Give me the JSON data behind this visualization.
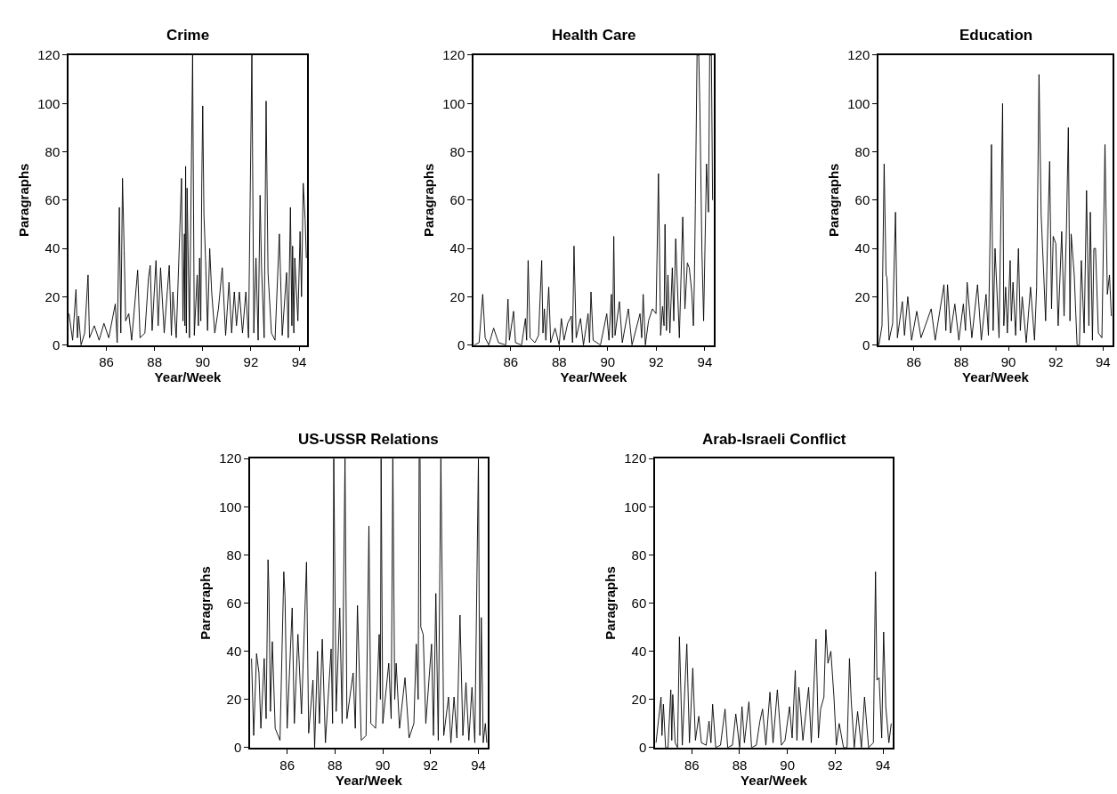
{
  "chart_data": [
    {
      "type": "line",
      "title": "Crime",
      "xlabel": "Year/Week",
      "ylabel": "Paragraphs",
      "color": "#000000",
      "xlim": [
        84.43,
        94.33
      ],
      "ylim": [
        0,
        120
      ],
      "xticks": [
        86,
        88,
        90,
        92,
        94
      ],
      "yticks": [
        0,
        20,
        40,
        60,
        80,
        100,
        120
      ],
      "x": [
        84.45,
        84.6,
        84.74,
        84.8,
        84.85,
        84.95,
        85.1,
        85.24,
        85.3,
        85.5,
        85.7,
        85.9,
        86.1,
        86.37,
        86.45,
        86.54,
        86.6,
        86.67,
        86.74,
        86.8,
        86.93,
        87.05,
        87.3,
        87.4,
        87.6,
        87.75,
        87.82,
        87.9,
        88.06,
        88.15,
        88.25,
        88.4,
        88.61,
        88.7,
        88.76,
        88.9,
        89.12,
        89.18,
        89.24,
        89.26,
        89.29,
        89.32,
        89.35,
        89.45,
        89.58,
        89.65,
        89.77,
        89.82,
        89.87,
        89.92,
        89.96,
        90.0,
        90.05,
        90.12,
        90.2,
        90.29,
        90.37,
        90.5,
        90.65,
        90.81,
        90.95,
        91.09,
        91.2,
        91.31,
        91.4,
        91.52,
        91.65,
        91.79,
        91.9,
        92.04,
        92.12,
        92.21,
        92.3,
        92.38,
        92.44,
        92.55,
        92.63,
        92.71,
        92.85,
        93.0,
        93.18,
        93.3,
        93.48,
        93.55,
        93.64,
        93.7,
        93.73,
        93.78,
        93.82,
        93.95,
        94.04,
        94.1,
        94.17,
        94.25,
        94.3
      ],
      "values": [
        13,
        2,
        23,
        3,
        12,
        0,
        5,
        29,
        3,
        8,
        2,
        9,
        3,
        17,
        1,
        57,
        5,
        69,
        39,
        10,
        13,
        2,
        31,
        3,
        5,
        28,
        33,
        6,
        35,
        8,
        32,
        5,
        33,
        4,
        22,
        3,
        69,
        10,
        46,
        8,
        74,
        5,
        65,
        3,
        120,
        4,
        29,
        8,
        36,
        10,
        67,
        99,
        54,
        35,
        6,
        40,
        22,
        5,
        15,
        32,
        4,
        26,
        5,
        22,
        8,
        22,
        5,
        22,
        3,
        120,
        5,
        36,
        2,
        62,
        32,
        3,
        101,
        30,
        5,
        2,
        46,
        4,
        30,
        3,
        57,
        8,
        41,
        5,
        36,
        10,
        47,
        20,
        67,
        52,
        36
      ]
    },
    {
      "type": "line",
      "title": "Health Care",
      "xlabel": "Year/Week",
      "ylabel": "Paragraphs",
      "color": "#000000",
      "xlim": [
        84.47,
        94.37
      ],
      "ylim": [
        0,
        120
      ],
      "xticks": [
        86,
        88,
        90,
        92,
        94
      ],
      "yticks": [
        0,
        20,
        40,
        60,
        80,
        100,
        120
      ],
      "x": [
        84.5,
        84.7,
        84.85,
        84.95,
        85.1,
        85.3,
        85.5,
        85.8,
        85.89,
        85.95,
        86.12,
        86.2,
        86.45,
        86.61,
        86.66,
        86.72,
        86.8,
        87.0,
        87.15,
        87.28,
        87.33,
        87.39,
        87.45,
        87.57,
        87.65,
        87.83,
        88.0,
        88.09,
        88.2,
        88.35,
        88.5,
        88.55,
        88.61,
        88.7,
        88.88,
        89.0,
        89.19,
        89.25,
        89.31,
        89.4,
        89.7,
        89.96,
        90.05,
        90.15,
        90.2,
        90.25,
        90.3,
        90.48,
        90.6,
        90.85,
        91.0,
        91.33,
        91.4,
        91.46,
        91.55,
        91.68,
        91.84,
        91.99,
        92.09,
        92.18,
        92.26,
        92.32,
        92.36,
        92.42,
        92.48,
        92.56,
        92.66,
        92.72,
        92.8,
        92.95,
        93.09,
        93.18,
        93.28,
        93.36,
        93.46,
        93.53,
        93.57,
        93.61,
        93.68,
        93.75,
        93.8,
        93.88,
        93.95,
        94.07,
        94.15,
        94.2,
        94.27,
        94.32
      ],
      "values": [
        0,
        1,
        21,
        3,
        0,
        7,
        1,
        0,
        19,
        2,
        14,
        1,
        0,
        11,
        2,
        35,
        3,
        1,
        4,
        35,
        5,
        15,
        2,
        24,
        1,
        7,
        0,
        11,
        2,
        9,
        12,
        1,
        41,
        3,
        11,
        0,
        13,
        1,
        22,
        2,
        0,
        13,
        2,
        21,
        3,
        45,
        4,
        18,
        1,
        15,
        0,
        13,
        3,
        21,
        0,
        10,
        15,
        13,
        71,
        4,
        16,
        8,
        50,
        6,
        29,
        5,
        32,
        10,
        44,
        3,
        53,
        15,
        34,
        32,
        22,
        8,
        27,
        58,
        120,
        120,
        96,
        39,
        10,
        75,
        55,
        120,
        120,
        60
      ]
    },
    {
      "type": "line",
      "title": "Education",
      "xlabel": "Year/Week",
      "ylabel": "Paragraphs",
      "color": "#000000",
      "xlim": [
        84.5,
        94.4
      ],
      "ylim": [
        0,
        120
      ],
      "xticks": [
        86,
        88,
        90,
        92,
        94
      ],
      "yticks": [
        0,
        20,
        40,
        60,
        80,
        100,
        120
      ],
      "x": [
        84.52,
        84.65,
        84.74,
        84.82,
        84.86,
        84.95,
        85.1,
        85.22,
        85.3,
        85.51,
        85.6,
        85.74,
        85.9,
        86.12,
        86.3,
        86.73,
        86.9,
        87.27,
        87.35,
        87.42,
        87.55,
        87.73,
        87.9,
        88.09,
        88.18,
        88.25,
        88.45,
        88.69,
        88.85,
        89.05,
        89.15,
        89.2,
        89.28,
        89.35,
        89.43,
        89.6,
        89.75,
        89.8,
        89.88,
        89.95,
        90.07,
        90.12,
        90.19,
        90.3,
        90.42,
        90.5,
        90.58,
        90.75,
        90.93,
        91.1,
        91.19,
        91.29,
        91.38,
        91.49,
        91.57,
        91.65,
        91.74,
        91.82,
        91.89,
        92.0,
        92.1,
        92.25,
        92.35,
        92.45,
        92.53,
        92.6,
        92.65,
        92.78,
        92.9,
        93.0,
        93.08,
        93.2,
        93.3,
        93.4,
        93.46,
        93.55,
        93.61,
        93.68,
        93.8,
        93.95,
        94.08,
        94.18,
        94.27,
        94.35
      ],
      "values": [
        0,
        8,
        75,
        29,
        28,
        2,
        9,
        55,
        3,
        18,
        4,
        20,
        2,
        14,
        3,
        15,
        2,
        25,
        6,
        25,
        5,
        17,
        2,
        17,
        6,
        26,
        3,
        25,
        2,
        21,
        4,
        33,
        83,
        6,
        40,
        3,
        100,
        8,
        24,
        5,
        35,
        10,
        26,
        4,
        40,
        6,
        20,
        1,
        24,
        2,
        24,
        112,
        54,
        29,
        10,
        43,
        76,
        15,
        45,
        42,
        8,
        47,
        12,
        48,
        90,
        10,
        46,
        29,
        0,
        0,
        35,
        5,
        64,
        8,
        55,
        2,
        40,
        40,
        5,
        3,
        83,
        21,
        29,
        12
      ]
    },
    {
      "type": "line",
      "title": "US-USSR Relations",
      "xlabel": "Year/Week",
      "ylabel": "Paragraphs",
      "color": "#000000",
      "xlim": [
        84.45,
        94.39
      ],
      "ylim": [
        0,
        120
      ],
      "xticks": [
        86,
        88,
        90,
        92,
        94
      ],
      "yticks": [
        0,
        20,
        40,
        60,
        80,
        100,
        120
      ],
      "x": [
        84.51,
        84.6,
        84.72,
        84.82,
        84.9,
        85.04,
        85.12,
        85.2,
        85.24,
        85.3,
        85.38,
        85.5,
        85.7,
        85.86,
        85.91,
        86.0,
        86.21,
        86.3,
        86.45,
        86.6,
        86.81,
        86.9,
        87.08,
        87.15,
        87.27,
        87.35,
        87.47,
        87.6,
        87.84,
        87.9,
        87.95,
        88.05,
        88.2,
        88.3,
        88.42,
        88.5,
        88.76,
        88.85,
        88.94,
        89.1,
        89.3,
        89.42,
        89.5,
        89.7,
        89.85,
        89.9,
        89.93,
        90.0,
        90.25,
        90.35,
        90.42,
        90.5,
        90.56,
        90.7,
        90.93,
        91.1,
        91.3,
        91.4,
        91.48,
        91.52,
        91.56,
        91.59,
        91.69,
        91.8,
        92.04,
        92.12,
        92.22,
        92.32,
        92.43,
        92.55,
        92.75,
        92.85,
        92.98,
        93.1,
        93.23,
        93.35,
        93.48,
        93.6,
        93.73,
        93.85,
        94.0,
        94.06,
        94.12,
        94.2,
        94.29,
        94.35
      ],
      "values": [
        37,
        5,
        39,
        31,
        8,
        37,
        12,
        78,
        64,
        15,
        44,
        8,
        3,
        73,
        63,
        8,
        58,
        10,
        47,
        14,
        77,
        6,
        28,
        0,
        40,
        10,
        45,
        2,
        41,
        10,
        120,
        15,
        58,
        10,
        120,
        12,
        31,
        8,
        59,
        3,
        5,
        92,
        10,
        8,
        47,
        20,
        120,
        10,
        35,
        12,
        120,
        20,
        35,
        8,
        29,
        4,
        10,
        43,
        20,
        120,
        120,
        50,
        47,
        10,
        43,
        5,
        64,
        3,
        120,
        5,
        21,
        2,
        21,
        4,
        55,
        5,
        27,
        3,
        25,
        2,
        120,
        5,
        54,
        2,
        10,
        2
      ]
    },
    {
      "type": "line",
      "title": "Arab-Israeli Conflict",
      "xlabel": "Year/Week",
      "ylabel": "Paragraphs",
      "color": "#000000",
      "xlim": [
        84.46,
        94.41
      ],
      "ylim": [
        0,
        120
      ],
      "xticks": [
        86,
        88,
        90,
        92,
        94
      ],
      "yticks": [
        0,
        20,
        40,
        60,
        80,
        100,
        120
      ],
      "x": [
        84.5,
        84.71,
        84.75,
        84.81,
        84.9,
        85.0,
        85.12,
        85.16,
        85.2,
        85.3,
        85.4,
        85.48,
        85.6,
        85.79,
        85.9,
        86.04,
        86.15,
        86.29,
        86.4,
        86.6,
        86.72,
        86.8,
        86.87,
        87.0,
        87.2,
        87.39,
        87.5,
        87.7,
        87.84,
        88.0,
        88.1,
        88.2,
        88.39,
        88.5,
        88.7,
        88.85,
        88.96,
        89.1,
        89.27,
        89.4,
        89.58,
        89.75,
        89.9,
        90.09,
        90.2,
        90.33,
        90.4,
        90.48,
        90.65,
        90.89,
        91.0,
        91.2,
        91.3,
        91.39,
        91.53,
        91.61,
        91.7,
        91.82,
        91.95,
        92.05,
        92.17,
        92.35,
        92.5,
        92.6,
        92.67,
        92.8,
        92.94,
        93.1,
        93.23,
        93.4,
        93.6,
        93.69,
        93.75,
        93.84,
        93.95,
        94.03,
        94.12,
        94.25,
        94.35
      ],
      "values": [
        2,
        21,
        5,
        18,
        0,
        0,
        24,
        3,
        22,
        2,
        0,
        46,
        1,
        43,
        2,
        33,
        3,
        13,
        2,
        1,
        11,
        2,
        18,
        0,
        1,
        16,
        0,
        1,
        14,
        0,
        17,
        2,
        19,
        0,
        1,
        11,
        16,
        1,
        23,
        2,
        24,
        1,
        3,
        17,
        4,
        32,
        3,
        25,
        3,
        25,
        2,
        45,
        4,
        16,
        21,
        49,
        35,
        40,
        21,
        1,
        10,
        0,
        0,
        37,
        20,
        0,
        15,
        0,
        21,
        0,
        2,
        73,
        28,
        29,
        4,
        48,
        17,
        2,
        10
      ]
    }
  ]
}
